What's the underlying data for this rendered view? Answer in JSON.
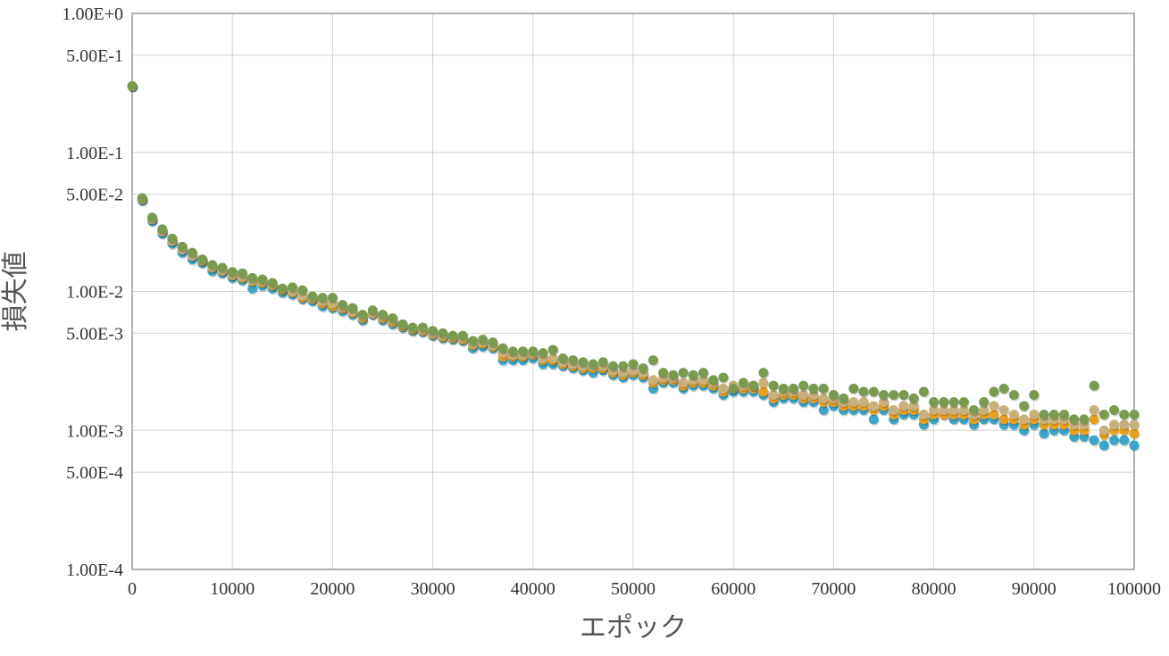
{
  "chart_data": {
    "type": "scatter",
    "title": "",
    "xlabel": "エポック",
    "ylabel": "損失値",
    "x_scale": "linear",
    "y_scale": "log",
    "xlim": [
      0,
      100000
    ],
    "ylim": [
      0.0001,
      1
    ],
    "grid": true,
    "legend": "none",
    "x_ticks": [
      "0",
      "10000",
      "20000",
      "30000",
      "40000",
      "50000",
      "60000",
      "70000",
      "80000",
      "90000",
      "100000"
    ],
    "y_ticks": [
      {
        "value": 1,
        "label": "1.00E+0"
      },
      {
        "value": 0.5,
        "label": "5.00E-1"
      },
      {
        "value": 0.1,
        "label": "1.00E-1"
      },
      {
        "value": 0.05,
        "label": "5.00E-2"
      },
      {
        "value": 0.01,
        "label": "1.00E-2"
      },
      {
        "value": 0.005,
        "label": "5.00E-3"
      },
      {
        "value": 0.001,
        "label": "1.00E-3"
      },
      {
        "value": 0.0005,
        "label": "5.00E-4"
      },
      {
        "value": 0.0001,
        "label": "1.00E-4"
      }
    ],
    "x": [
      0,
      1000,
      2000,
      3000,
      4000,
      5000,
      6000,
      7000,
      8000,
      9000,
      10000,
      11000,
      12000,
      13000,
      14000,
      15000,
      16000,
      17000,
      18000,
      19000,
      20000,
      21000,
      22000,
      23000,
      24000,
      25000,
      26000,
      27000,
      28000,
      29000,
      30000,
      31000,
      32000,
      33000,
      34000,
      35000,
      36000,
      37000,
      38000,
      39000,
      40000,
      41000,
      42000,
      43000,
      44000,
      45000,
      46000,
      47000,
      48000,
      49000,
      50000,
      51000,
      52000,
      53000,
      54000,
      55000,
      56000,
      57000,
      58000,
      59000,
      60000,
      61000,
      62000,
      63000,
      64000,
      65000,
      66000,
      67000,
      68000,
      69000,
      70000,
      71000,
      72000,
      73000,
      74000,
      75000,
      76000,
      77000,
      78000,
      79000,
      80000,
      81000,
      82000,
      83000,
      84000,
      85000,
      86000,
      87000,
      88000,
      89000,
      90000,
      91000,
      92000,
      93000,
      94000,
      95000,
      96000,
      97000,
      98000,
      99000,
      100000
    ],
    "series": [
      {
        "color": "#3aa5c7",
        "values": [
          0.3,
          0.045,
          0.032,
          0.026,
          0.022,
          0.019,
          0.017,
          0.016,
          0.014,
          0.0135,
          0.0125,
          0.012,
          0.0105,
          0.011,
          0.0105,
          0.0098,
          0.0095,
          0.0088,
          0.0085,
          0.0078,
          0.0076,
          0.0072,
          0.0068,
          0.0062,
          0.0068,
          0.0062,
          0.0058,
          0.0055,
          0.0052,
          0.0051,
          0.0048,
          0.0046,
          0.0045,
          0.0044,
          0.0039,
          0.004,
          0.0039,
          0.0032,
          0.0032,
          0.0032,
          0.0033,
          0.003,
          0.003,
          0.0029,
          0.0028,
          0.0027,
          0.0026,
          0.0027,
          0.0025,
          0.0024,
          0.0025,
          0.0024,
          0.002,
          0.0022,
          0.0022,
          0.002,
          0.0021,
          0.0021,
          0.002,
          0.0018,
          0.0019,
          0.0019,
          0.0019,
          0.0018,
          0.0016,
          0.0017,
          0.0017,
          0.0016,
          0.0016,
          0.0014,
          0.0015,
          0.0014,
          0.0014,
          0.0014,
          0.0012,
          0.0014,
          0.0012,
          0.0013,
          0.0013,
          0.0011,
          0.0012,
          0.0013,
          0.0012,
          0.0012,
          0.0011,
          0.0012,
          0.0012,
          0.0011,
          0.0011,
          0.001,
          0.0011,
          0.00095,
          0.001,
          0.001,
          0.0009,
          0.0009,
          0.00085,
          0.00078,
          0.00085,
          0.00085,
          0.00078
        ]
      },
      {
        "color": "#e8a020",
        "values": [
          0.3,
          0.046,
          0.033,
          0.027,
          0.023,
          0.02,
          0.018,
          0.0165,
          0.0148,
          0.014,
          0.013,
          0.0125,
          0.0118,
          0.0115,
          0.011,
          0.0102,
          0.0098,
          0.009,
          0.0088,
          0.0082,
          0.0078,
          0.0075,
          0.007,
          0.0064,
          0.0069,
          0.0064,
          0.006,
          0.0056,
          0.0053,
          0.0052,
          0.0049,
          0.0047,
          0.0046,
          0.0045,
          0.0041,
          0.0042,
          0.004,
          0.0034,
          0.0034,
          0.0034,
          0.0035,
          0.0032,
          0.0032,
          0.003,
          0.0029,
          0.0028,
          0.0028,
          0.0028,
          0.0026,
          0.0025,
          0.0026,
          0.0025,
          0.0022,
          0.0023,
          0.0023,
          0.0021,
          0.0022,
          0.0022,
          0.0021,
          0.0019,
          0.002,
          0.002,
          0.002,
          0.0019,
          0.0017,
          0.0018,
          0.0018,
          0.0017,
          0.0017,
          0.0016,
          0.0016,
          0.0015,
          0.0015,
          0.0015,
          0.0014,
          0.0015,
          0.0013,
          0.0014,
          0.0014,
          0.0012,
          0.0013,
          0.0013,
          0.0013,
          0.0013,
          0.0012,
          0.0013,
          0.0013,
          0.0012,
          0.0012,
          0.0011,
          0.0012,
          0.0011,
          0.0011,
          0.0011,
          0.001,
          0.001,
          0.0012,
          0.00093,
          0.001,
          0.001,
          0.00095
        ]
      },
      {
        "color": "#c8b07a",
        "values": [
          0.3,
          0.046,
          0.033,
          0.027,
          0.023,
          0.02,
          0.018,
          0.0168,
          0.015,
          0.0142,
          0.0132,
          0.0128,
          0.012,
          0.0118,
          0.0112,
          0.0104,
          0.01,
          0.0093,
          0.009,
          0.0085,
          0.0082,
          0.0077,
          0.0072,
          0.0066,
          0.007,
          0.0066,
          0.0062,
          0.0057,
          0.0054,
          0.0053,
          0.005,
          0.0048,
          0.0047,
          0.0046,
          0.0042,
          0.0043,
          0.0041,
          0.0036,
          0.0035,
          0.0035,
          0.0036,
          0.0033,
          0.0033,
          0.0031,
          0.003,
          0.0029,
          0.0029,
          0.0029,
          0.0027,
          0.0026,
          0.0027,
          0.0026,
          0.0023,
          0.0024,
          0.0024,
          0.0022,
          0.0023,
          0.0023,
          0.0022,
          0.002,
          0.0021,
          0.0021,
          0.0021,
          0.0022,
          0.0018,
          0.0019,
          0.0019,
          0.0018,
          0.0018,
          0.0017,
          0.0017,
          0.0016,
          0.0016,
          0.0016,
          0.0015,
          0.0016,
          0.0014,
          0.0015,
          0.0015,
          0.0013,
          0.0014,
          0.0014,
          0.0014,
          0.0014,
          0.0013,
          0.0014,
          0.0015,
          0.0014,
          0.0013,
          0.0012,
          0.0013,
          0.0012,
          0.0012,
          0.0012,
          0.0011,
          0.0011,
          0.0014,
          0.001,
          0.0011,
          0.0011,
          0.0011
        ]
      },
      {
        "color": "#7a9a50",
        "values": [
          0.3,
          0.047,
          0.034,
          0.028,
          0.024,
          0.021,
          0.019,
          0.017,
          0.0155,
          0.0148,
          0.0138,
          0.0135,
          0.0125,
          0.0122,
          0.0115,
          0.0105,
          0.0107,
          0.0102,
          0.0092,
          0.009,
          0.009,
          0.008,
          0.0076,
          0.0068,
          0.0073,
          0.0068,
          0.0064,
          0.0058,
          0.0055,
          0.0055,
          0.0052,
          0.005,
          0.0048,
          0.0048,
          0.0044,
          0.0045,
          0.0043,
          0.0039,
          0.0037,
          0.0037,
          0.0037,
          0.0036,
          0.0038,
          0.0033,
          0.0032,
          0.0031,
          0.003,
          0.0031,
          0.0029,
          0.0029,
          0.003,
          0.0028,
          0.0032,
          0.0026,
          0.0025,
          0.0026,
          0.0025,
          0.0026,
          0.0023,
          0.0024,
          0.002,
          0.0022,
          0.0021,
          0.0026,
          0.0021,
          0.002,
          0.002,
          0.0021,
          0.002,
          0.002,
          0.0018,
          0.0017,
          0.002,
          0.0019,
          0.0019,
          0.0018,
          0.0018,
          0.0018,
          0.0017,
          0.0019,
          0.0016,
          0.0016,
          0.0016,
          0.0016,
          0.0014,
          0.0016,
          0.0019,
          0.002,
          0.0018,
          0.0015,
          0.0018,
          0.0013,
          0.0013,
          0.0013,
          0.0012,
          0.0012,
          0.0021,
          0.0013,
          0.0014,
          0.0013,
          0.0013
        ]
      }
    ]
  }
}
